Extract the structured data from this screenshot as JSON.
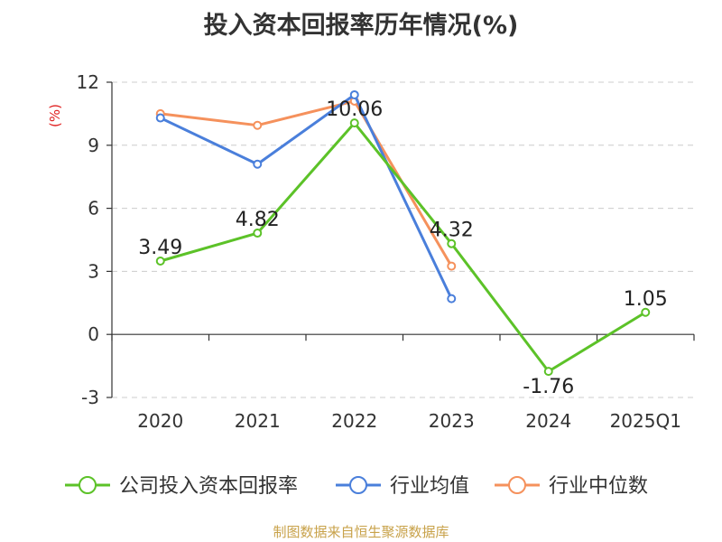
{
  "title": "投入资本回报率历年情况(%)",
  "footer": "制图数据来自恒生聚源数据库",
  "chart_data": {
    "type": "line",
    "title": "投入资本回报率历年情况(%)",
    "ylabel": "(%)",
    "xlabel": "",
    "categories": [
      "2020",
      "2021",
      "2022",
      "2023",
      "2024",
      "2025Q1"
    ],
    "ylim": [
      -3,
      12
    ],
    "yticks": [
      -3,
      0,
      3,
      6,
      9,
      12
    ],
    "grid": true,
    "legend_position": "bottom",
    "series": [
      {
        "name": "公司投入资本回报率",
        "color": "#5cc228",
        "values": [
          3.49,
          4.82,
          10.06,
          4.32,
          -1.76,
          1.05
        ],
        "labels": [
          "3.49",
          "4.82",
          "10.06",
          "4.32",
          "-1.76",
          "1.05"
        ]
      },
      {
        "name": "行业均值",
        "color": "#4a7fdb",
        "values": [
          10.3,
          8.1,
          11.4,
          1.7,
          null,
          null
        ]
      },
      {
        "name": "行业中位数",
        "color": "#f5915c",
        "values": [
          10.5,
          9.95,
          11.1,
          3.25,
          null,
          null
        ]
      }
    ]
  }
}
